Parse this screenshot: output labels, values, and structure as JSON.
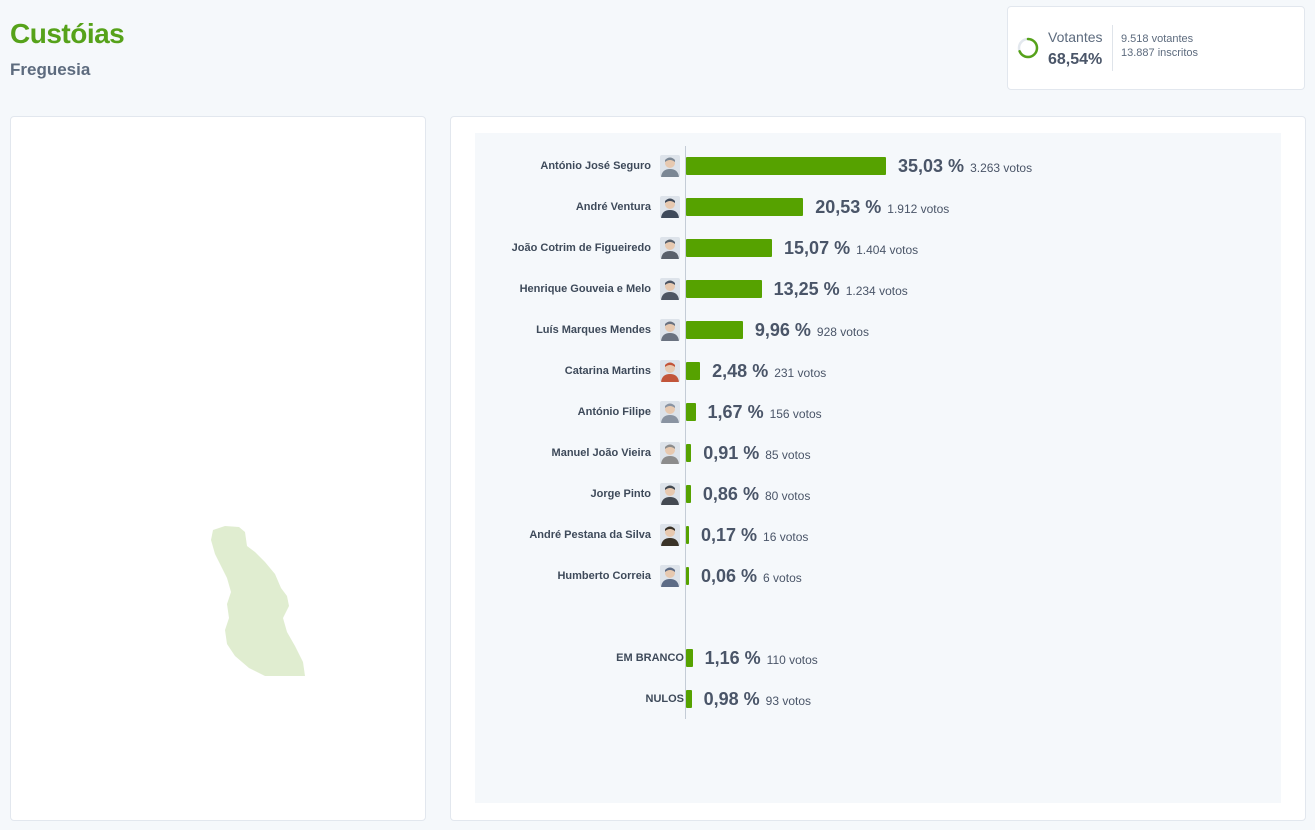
{
  "place": {
    "name": "Custóias",
    "type": "Freguesia"
  },
  "turnout": {
    "label": "Votantes",
    "percent": "68,54%",
    "percent_value": 68.54,
    "voters": "9.518 votantes",
    "registered": "13.887 inscritos",
    "ring_color": "#56a21a"
  },
  "colors": {
    "bar": "#56a200",
    "title": "#56a21a",
    "map_fill": "#e0edd0"
  },
  "chart_data": {
    "type": "bar",
    "orientation": "horizontal",
    "title": "",
    "xlabel": "",
    "ylabel": "",
    "grid": false,
    "legend": "none",
    "unit": "%",
    "candidates": [
      {
        "name": "António José Seguro",
        "value": 35.03,
        "pct": "35,03 %",
        "votes": "3.263 votos",
        "icon": "person-photo-icon",
        "tint": "#7b8794"
      },
      {
        "name": "André Ventura",
        "value": 20.53,
        "pct": "20,53 %",
        "votes": "1.912 votos",
        "icon": "person-photo-icon",
        "tint": "#3f4a5a"
      },
      {
        "name": "João Cotrim de Figueiredo",
        "value": 15.07,
        "pct": "15,07 %",
        "votes": "1.404 votos",
        "icon": "person-photo-icon",
        "tint": "#59606b"
      },
      {
        "name": "Henrique Gouveia e Melo",
        "value": 13.25,
        "pct": "13,25 %",
        "votes": "1.234 votos",
        "icon": "person-photo-icon",
        "tint": "#4d5563"
      },
      {
        "name": "Luís Marques Mendes",
        "value": 9.96,
        "pct": "9,96 %",
        "votes": "928 votos",
        "icon": "person-photo-icon",
        "tint": "#6a7280"
      },
      {
        "name": "Catarina Martins",
        "value": 2.48,
        "pct": "2,48 %",
        "votes": "231 votos",
        "icon": "person-photo-icon",
        "tint": "#c2553a"
      },
      {
        "name": "António Filipe",
        "value": 1.67,
        "pct": "1,67 %",
        "votes": "156 votos",
        "icon": "person-photo-icon",
        "tint": "#8a94a2"
      },
      {
        "name": "Manuel João Vieira",
        "value": 0.91,
        "pct": "0,91 %",
        "votes": "85 votos",
        "icon": "person-photo-icon",
        "tint": "#8c8c8c"
      },
      {
        "name": "Jorge Pinto",
        "value": 0.86,
        "pct": "0,86 %",
        "votes": "80 votos",
        "icon": "person-photo-icon",
        "tint": "#444a52"
      },
      {
        "name": "André Pestana da Silva",
        "value": 0.17,
        "pct": "0,17 %",
        "votes": "16 votos",
        "icon": "person-photo-icon",
        "tint": "#3a3328"
      },
      {
        "name": "Humberto Correia",
        "value": 0.06,
        "pct": "0,06 %",
        "votes": "6 votos",
        "icon": "person-photo-icon",
        "tint": "#5c6b85"
      }
    ],
    "other": [
      {
        "name": "EM BRANCO",
        "value": 1.16,
        "pct": "1,16 %",
        "votes": "110 votos"
      },
      {
        "name": "NULOS",
        "value": 0.98,
        "pct": "0,98 %",
        "votes": "93 votos"
      }
    ]
  }
}
